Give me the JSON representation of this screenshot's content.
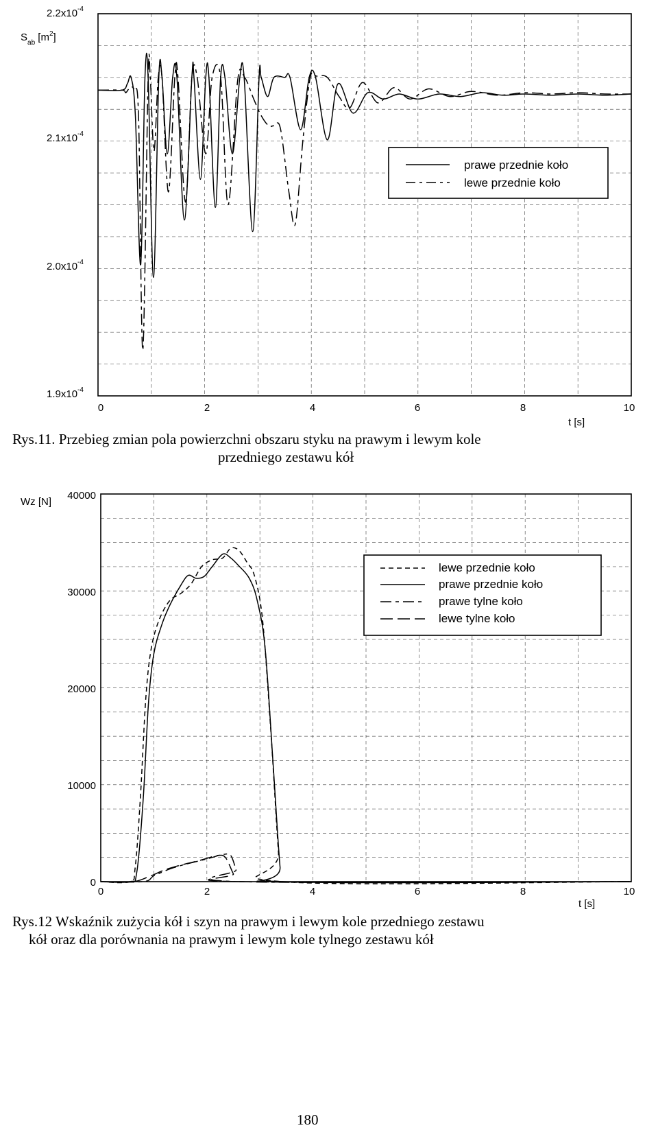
{
  "figure1": {
    "caption_line1": "Rys.11. Przebieg zmian pola powierzchni obszaru styku na prawym i lewym kole",
    "caption_line2": "przedniego zestawu kół",
    "ylabel_main": "S",
    "ylabel_sub": "ab",
    "ylabel_unit_open": " [m",
    "ylabel_unit_sup": "2",
    "ylabel_unit_close": "]",
    "xlabel": "t [s]",
    "yticks": [
      {
        "base": "2.2x10",
        "exp": "-4"
      },
      {
        "base": "2.1x10",
        "exp": "-4"
      },
      {
        "base": "2.0x10",
        "exp": "-4"
      },
      {
        "base": "1.9x10",
        "exp": "-4"
      }
    ],
    "xticks": [
      "0",
      "2",
      "4",
      "6",
      "8",
      "10"
    ],
    "legend": [
      "prawe przednie koło",
      "lewe przednie koło"
    ]
  },
  "figure2": {
    "caption_line1": "Rys.12 Wskaźnik zużycia kół i szyn na prawym i lewym kole przedniego zestawu",
    "caption_line2": "kół oraz dla porównania na prawym i lewym kole tylnego zestawu kół",
    "ylabel": "Wz [N]",
    "xlabel": "t [s]",
    "yticks": [
      "40000",
      "30000",
      "20000",
      "10000",
      "0"
    ],
    "xticks": [
      "0",
      "2",
      "4",
      "6",
      "8",
      "10"
    ],
    "legend": [
      "lewe przednie koło",
      "prawe przednie koło",
      "prawe tylne koło",
      "lewe tylne koło"
    ]
  },
  "page_number": "180",
  "chart_data": [
    {
      "type": "line",
      "xlim": [
        0,
        10
      ],
      "ylim": [
        0.00019,
        0.00022
      ],
      "grid": true,
      "legend_position": "right",
      "series": [
        {
          "name": "prawe przednie koło",
          "style": "solid",
          "points": [
            [
              0,
              0.000214
            ],
            [
              0.45,
              0.000214
            ],
            [
              0.55,
              0.0002145
            ],
            [
              0.62,
              0.000215
            ],
            [
              0.7,
              0.000212
            ],
            [
              0.8,
              0.0002003
            ],
            [
              0.88,
              0.000215
            ],
            [
              0.94,
              0.000215
            ],
            [
              1.04,
              0.0001993
            ],
            [
              1.14,
              0.000215
            ],
            [
              1.2,
              0.000215
            ],
            [
              1.3,
              0.000209
            ],
            [
              1.4,
              0.000215
            ],
            [
              1.48,
              0.000215
            ],
            [
              1.62,
              0.0002038
            ],
            [
              1.76,
              0.000215
            ],
            [
              1.8,
              0.000215
            ],
            [
              1.92,
              0.000207
            ],
            [
              2.02,
              0.000215
            ],
            [
              2.08,
              0.000215
            ],
            [
              2.2,
              0.0002048
            ],
            [
              2.3,
              0.000215
            ],
            [
              2.38,
              0.000215
            ],
            [
              2.52,
              0.000209
            ],
            [
              2.66,
              0.000215
            ],
            [
              2.74,
              0.000215
            ],
            [
              2.9,
              0.0002029
            ],
            [
              3.02,
              0.000215
            ],
            [
              3.06,
              0.000215
            ],
            [
              3.18,
              0.0002135
            ],
            [
              3.3,
              0.000215
            ],
            [
              3.5,
              0.000215
            ],
            [
              3.6,
              0.000215
            ],
            [
              3.8,
              0.0002109
            ],
            [
              3.96,
              0.000215
            ],
            [
              4.08,
              0.000215
            ],
            [
              4.3,
              0.0002101
            ],
            [
              4.5,
              0.0002145
            ],
            [
              4.78,
              0.0002122
            ],
            [
              5.06,
              0.0002138
            ],
            [
              5.35,
              0.0002133
            ],
            [
              5.65,
              0.0002137
            ],
            [
              6.0,
              0.0002133
            ],
            [
              6.4,
              0.0002137
            ],
            [
              6.8,
              0.0002135
            ],
            [
              7.2,
              0.0002138
            ],
            [
              7.6,
              0.0002136
            ],
            [
              8.0,
              0.0002137
            ],
            [
              8.5,
              0.0002136
            ],
            [
              9.0,
              0.0002137
            ],
            [
              9.5,
              0.0002136
            ],
            [
              10.0,
              0.0002137
            ]
          ]
        },
        {
          "name": "lewe przednie koło",
          "style": "dash-dot",
          "points": [
            [
              0,
              0.000214
            ],
            [
              0.45,
              0.000214
            ],
            [
              0.52,
              0.0002138
            ],
            [
              0.6,
              0.0002142
            ],
            [
              0.68,
              0.000214
            ],
            [
              0.76,
              0.000212
            ],
            [
              0.84,
              0.0001936
            ],
            [
              0.94,
              0.000215
            ],
            [
              0.98,
              0.000215
            ],
            [
              1.05,
              0.0002092
            ],
            [
              1.13,
              0.000215
            ],
            [
              1.2,
              0.000215
            ],
            [
              1.32,
              0.000206
            ],
            [
              1.44,
              0.000215
            ],
            [
              1.5,
              0.000215
            ],
            [
              1.64,
              0.0002052
            ],
            [
              1.76,
              0.000215
            ],
            [
              1.86,
              0.000215
            ],
            [
              2.02,
              0.000209
            ],
            [
              2.14,
              0.000215
            ],
            [
              2.3,
              0.000215
            ],
            [
              2.44,
              0.000205
            ],
            [
              2.62,
              0.0002148
            ],
            [
              2.75,
              0.000215
            ],
            [
              2.92,
              0.0002133
            ],
            [
              3.06,
              0.000212
            ],
            [
              3.2,
              0.0002112
            ],
            [
              3.3,
              0.0002112
            ],
            [
              3.42,
              0.000211
            ],
            [
              3.58,
              0.000206
            ],
            [
              3.7,
              0.0002035
            ],
            [
              3.84,
              0.00021
            ],
            [
              3.98,
              0.000215
            ],
            [
              4.1,
              0.0002151
            ],
            [
              4.3,
              0.000215
            ],
            [
              4.52,
              0.0002135
            ],
            [
              4.72,
              0.0002126
            ],
            [
              4.96,
              0.0002146
            ],
            [
              5.25,
              0.000213
            ],
            [
              5.55,
              0.0002142
            ],
            [
              5.85,
              0.0002133
            ],
            [
              6.2,
              0.0002141
            ],
            [
              6.6,
              0.0002135
            ],
            [
              7.0,
              0.0002139
            ],
            [
              7.5,
              0.0002136
            ],
            [
              8.0,
              0.0002138
            ],
            [
              8.5,
              0.0002137
            ],
            [
              9.0,
              0.0002138
            ],
            [
              9.5,
              0.0002137
            ],
            [
              10.0,
              0.0002137
            ]
          ]
        }
      ]
    },
    {
      "type": "line",
      "xlim": [
        0,
        10
      ],
      "ylim": [
        0,
        40000
      ],
      "grid": true,
      "legend_position": "right",
      "series": [
        {
          "name": "lewe przednie koło",
          "style": "dashed",
          "points": [
            [
              0,
              0
            ],
            [
              0.55,
              0
            ],
            [
              0.65,
              1500
            ],
            [
              0.75,
              9000
            ],
            [
              0.85,
              19000
            ],
            [
              0.95,
              24000
            ],
            [
              1.1,
              27000
            ],
            [
              1.3,
              29000
            ],
            [
              1.5,
              29700
            ],
            [
              1.7,
              30700
            ],
            [
              1.9,
              32500
            ],
            [
              2.1,
              33200
            ],
            [
              2.3,
              33400
            ],
            [
              2.45,
              34400
            ],
            [
              2.6,
              34200
            ],
            [
              2.75,
              33000
            ],
            [
              2.9,
              31500
            ],
            [
              3.05,
              27000
            ],
            [
              3.2,
              16000
            ],
            [
              3.35,
              3000
            ],
            [
              3.42,
              0
            ],
            [
              10,
              0
            ]
          ]
        },
        {
          "name": "prawe przednie koło",
          "style": "solid",
          "points": [
            [
              0,
              0
            ],
            [
              0.55,
              0
            ],
            [
              0.68,
              1000
            ],
            [
              0.8,
              8500
            ],
            [
              0.9,
              18500
            ],
            [
              1.0,
              23500
            ],
            [
              1.15,
              26500
            ],
            [
              1.3,
              28500
            ],
            [
              1.5,
              30500
            ],
            [
              1.65,
              31600
            ],
            [
              1.8,
              31300
            ],
            [
              1.95,
              31500
            ],
            [
              2.1,
              32500
            ],
            [
              2.3,
              33800
            ],
            [
              2.45,
              33400
            ],
            [
              2.6,
              32600
            ],
            [
              2.8,
              31300
            ],
            [
              2.95,
              29000
            ],
            [
              3.1,
              24000
            ],
            [
              3.25,
              12000
            ],
            [
              3.38,
              1500
            ],
            [
              3.45,
              0
            ],
            [
              10,
              0
            ]
          ]
        },
        {
          "name": "prawe tylne koło",
          "style": "dash-dot",
          "points": [
            [
              0,
              0
            ],
            [
              0.8,
              0
            ],
            [
              1.0,
              600
            ],
            [
              1.3,
              1300
            ],
            [
              1.6,
              1800
            ],
            [
              1.9,
              2200
            ],
            [
              2.1,
              2500
            ],
            [
              2.3,
              2800
            ],
            [
              2.45,
              2700
            ],
            [
              2.55,
              1200
            ],
            [
              2.62,
              0
            ],
            [
              10,
              0
            ]
          ]
        },
        {
          "name": "lewe tylne koło",
          "style": "long-dash",
          "points": [
            [
              0,
              0
            ],
            [
              0.6,
              0
            ],
            [
              0.9,
              500
            ],
            [
              1.2,
              1200
            ],
            [
              1.5,
              1700
            ],
            [
              1.8,
              2100
            ],
            [
              2.0,
              2400
            ],
            [
              2.2,
              2700
            ],
            [
              2.35,
              2500
            ],
            [
              2.5,
              800
            ],
            [
              2.6,
              0
            ],
            [
              10,
              0
            ]
          ]
        }
      ]
    }
  ]
}
